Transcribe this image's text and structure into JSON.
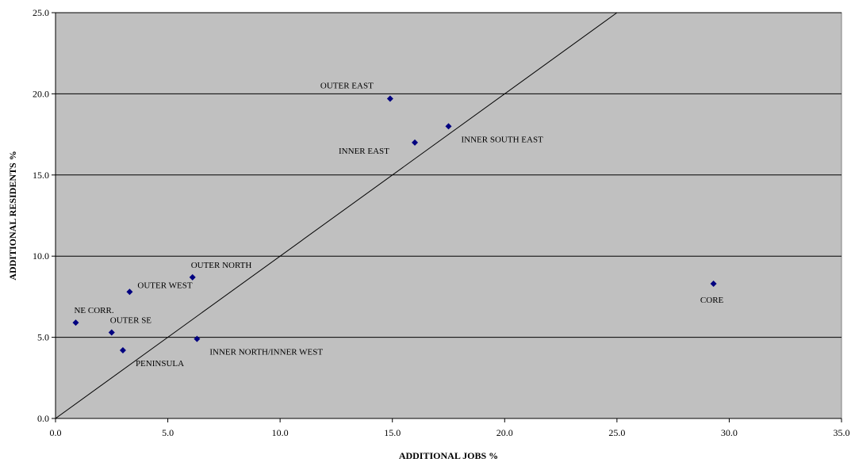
{
  "chart_data": {
    "type": "scatter",
    "xlabel": "ADDITIONAL JOBS %",
    "ylabel": "ADDITIONAL RESIDENTS %",
    "xlim": [
      0,
      35
    ],
    "ylim": [
      0,
      25
    ],
    "x_ticks": [
      "0.0",
      "5.0",
      "10.0",
      "15.0",
      "20.0",
      "25.0",
      "30.0",
      "35.0"
    ],
    "y_ticks": [
      "0.0",
      "5.0",
      "10.0",
      "15.0",
      "20.0",
      "25.0"
    ],
    "grid": "horizontal",
    "reference_line": {
      "from": [
        0,
        0
      ],
      "to": [
        25,
        25
      ]
    },
    "colors": {
      "plot_bg": "#c0c0c0",
      "marker": "#000080",
      "line": "#000000"
    },
    "points": [
      {
        "label": "OUTER EAST",
        "x": 14.9,
        "y": 19.7,
        "label_pos": "above-left"
      },
      {
        "label": "INNER SOUTH EAST",
        "x": 17.5,
        "y": 18.0,
        "label_pos": "below-right"
      },
      {
        "label": "INNER EAST",
        "x": 16.0,
        "y": 17.0,
        "label_pos": "below-left"
      },
      {
        "label": "CORE",
        "x": 29.3,
        "y": 8.3,
        "label_pos": "below"
      },
      {
        "label": "OUTER NORTH",
        "x": 6.1,
        "y": 8.7,
        "label_pos": "above-right"
      },
      {
        "label": "OUTER WEST",
        "x": 3.3,
        "y": 7.8,
        "label_pos": "right"
      },
      {
        "label": "NE CORR.",
        "x": 0.9,
        "y": 5.9,
        "label_pos": "above-right"
      },
      {
        "label": "OUTER SE",
        "x": 2.5,
        "y": 5.3,
        "label_pos": "above-right"
      },
      {
        "label": "PENINSULA",
        "x": 3.0,
        "y": 4.2,
        "label_pos": "below-right"
      },
      {
        "label": "INNER NORTH/INNER WEST",
        "x": 6.3,
        "y": 4.9,
        "label_pos": "below-right"
      }
    ]
  }
}
